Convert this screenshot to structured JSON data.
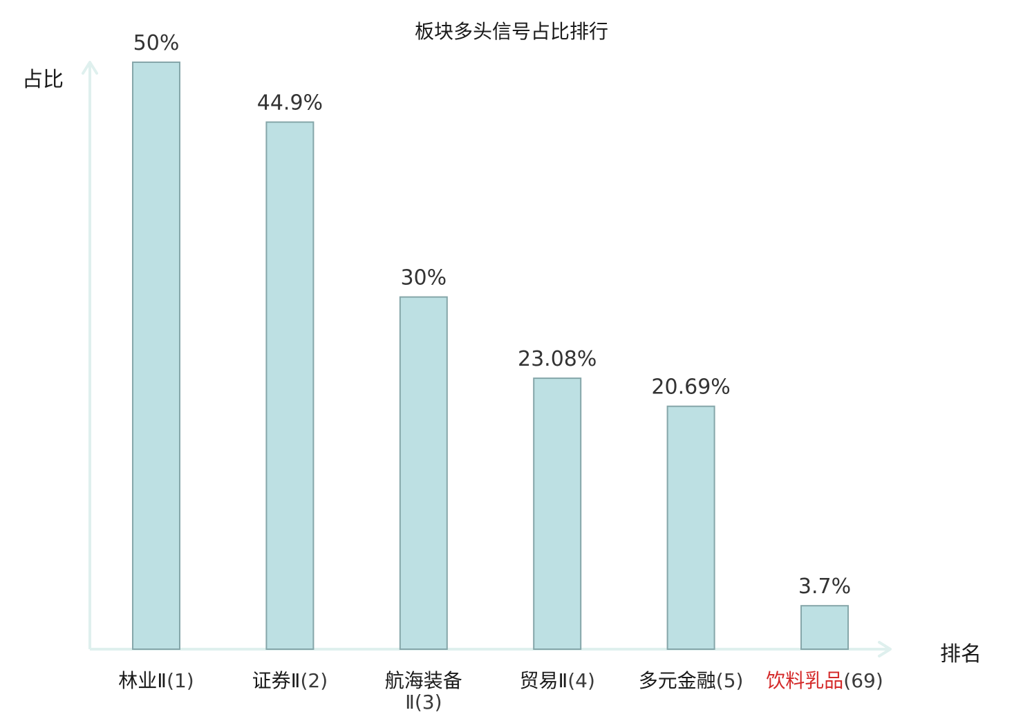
{
  "chart_data": {
    "type": "bar",
    "title": "板块多头信号占比排行",
    "ylabel": "占比",
    "xlabel": "排名",
    "ylim": [
      0,
      50
    ],
    "grid": false,
    "categories": [
      "林业Ⅱ(1)",
      "证券Ⅱ(2)",
      "航海装备Ⅱ(3)",
      "贸易Ⅱ(4)",
      "多元金融(5)",
      "饮料乳品(69)"
    ],
    "category_lines": [
      [
        {
          "name": "林业Ⅱ",
          "rank": "(1)"
        }
      ],
      [
        {
          "name": "证券Ⅱ",
          "rank": "(2)"
        }
      ],
      [
        {
          "name": "航海装备",
          "rank": ""
        },
        {
          "name": "",
          "rank": "Ⅱ(3)"
        }
      ],
      [
        {
          "name": "贸易Ⅱ",
          "rank": "(4)"
        }
      ],
      [
        {
          "name": "多元金融",
          "rank": "(5)"
        }
      ],
      [
        {
          "name": "饮料乳品",
          "rank": "(69)"
        }
      ]
    ],
    "values": [
      50,
      44.9,
      30,
      23.08,
      20.69,
      3.7
    ],
    "value_labels": [
      "50%",
      "44.9%",
      "30%",
      "23.08%",
      "20.69%",
      "3.7%"
    ],
    "highlight_index": 5,
    "colors": {
      "bar_fill": "#bde0e3",
      "bar_stroke": "#85a6a9",
      "axis": "#dff0ee",
      "highlight": "#d42a2a",
      "text": "#1a1a1a"
    }
  }
}
